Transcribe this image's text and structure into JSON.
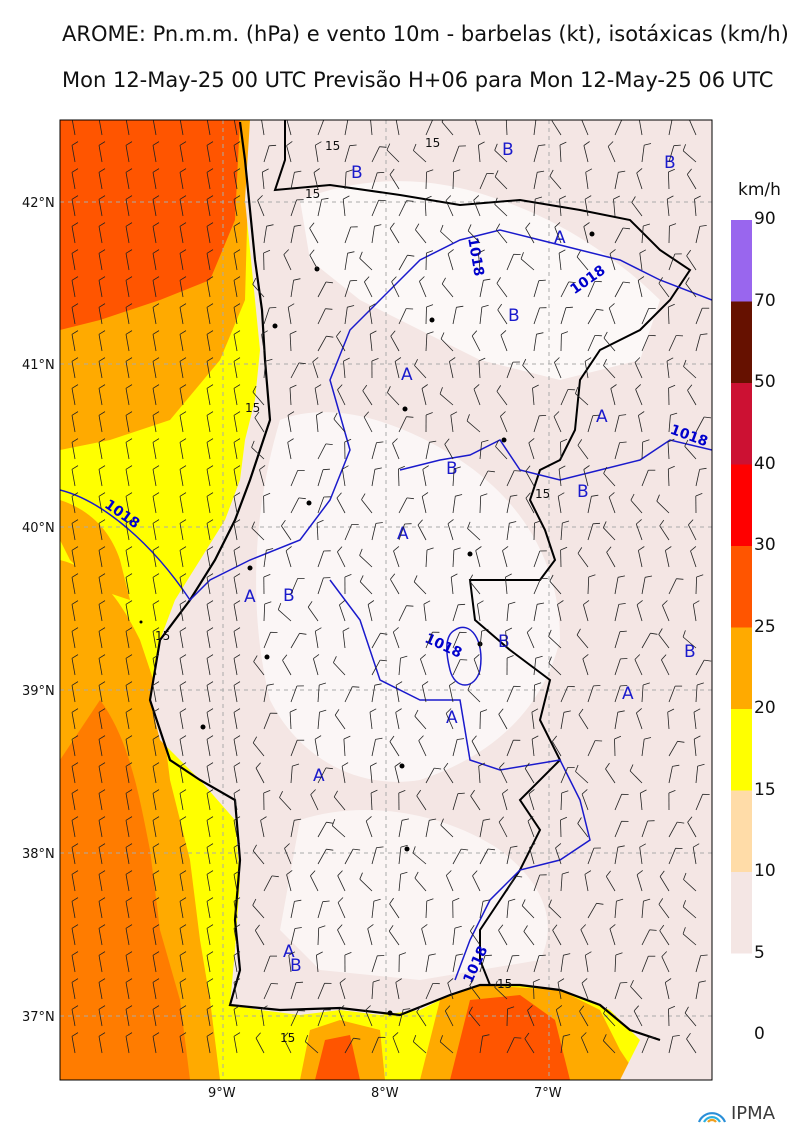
{
  "title_line1": "AROME: Pn.m.m. (hPa) e vento 10m - barbelas (kt), isotáxicas (km/h)",
  "title_line2": "Mon 12-May-25 00 UTC Previsão H+06 para Mon 12-May-25 06 UTC",
  "axes": {
    "lon_ticks": [
      "9°W",
      "8°W",
      "7°W"
    ],
    "lat_ticks": [
      "42°N",
      "41°N",
      "40°N",
      "39°N",
      "38°N",
      "37°N"
    ]
  },
  "colorbar": {
    "unit": "km/h",
    "levels": [
      "90",
      "70",
      "50",
      "40",
      "30",
      "25",
      "20",
      "15",
      "10",
      "5",
      "0"
    ],
    "colors": [
      "#9966ee",
      "#661100",
      "#cc1133",
      "#ff0000",
      "#ff5500",
      "#ffaa00",
      "#ffff00",
      "#ffdca8",
      "#f4e6e4",
      "#ffffff"
    ]
  },
  "pressure_labels": {
    "isobar": "1018",
    "high": "A",
    "low": "B"
  },
  "isotach_label": "15",
  "logo_text": "IPMA"
}
